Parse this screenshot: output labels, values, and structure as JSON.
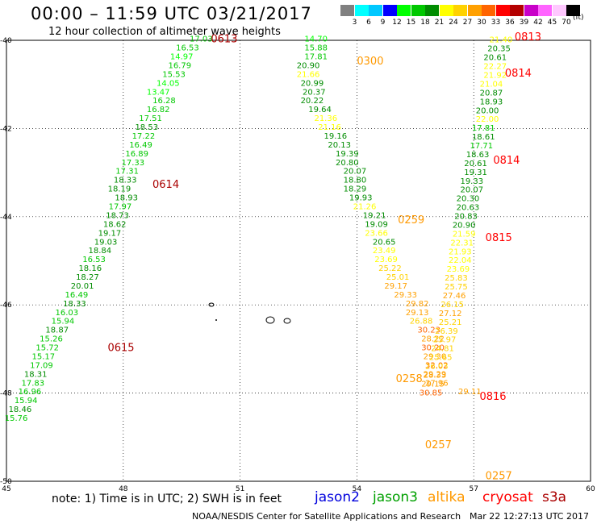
{
  "header": {
    "title": "00:00 – 11:59 UTC 03/21/2017",
    "subtitle": "12 hour collection of altimeter wave heights"
  },
  "color_scale": {
    "labels": [
      "3",
      "6",
      "9",
      "12",
      "15",
      "18",
      "21",
      "24",
      "27",
      "30",
      "33",
      "36",
      "39",
      "42",
      "45",
      "70"
    ],
    "unit": "(ft)",
    "colors": [
      "#808080",
      "#00ffff",
      "#00c8ff",
      "#0000ff",
      "#00ff00",
      "#00c800",
      "#008c00",
      "#ffff00",
      "#ffd200",
      "#ffa000",
      "#ff6400",
      "#ff0000",
      "#b40000",
      "#c800c8",
      "#ff64ff",
      "#ffc8ff",
      "#000000"
    ]
  },
  "note": "note: 1) Time is in UTC; 2) SWH is in feet",
  "legend": [
    {
      "name": "jason2",
      "color": "#0000dd"
    },
    {
      "name": "jason3",
      "color": "#00a000"
    },
    {
      "name": "altika",
      "color": "#ff9900"
    },
    {
      "name": "cryosat",
      "color": "#ff0000"
    },
    {
      "name": "s3a",
      "color": "#aa0000"
    }
  ],
  "footer": {
    "left": "NOAA/NESDIS Center for Satellite Applications and Research",
    "right": "Mar 22 12:27:13 UTC 2017"
  },
  "chart_data": {
    "type": "scatter",
    "xlim": [
      45,
      60
    ],
    "ylim": [
      -50,
      -40
    ],
    "xticks": [
      "45",
      "48",
      "51",
      "54",
      "57",
      "60"
    ],
    "yticks": [
      "-40",
      "-42",
      "-44",
      "-46",
      "-48",
      "-50"
    ],
    "grid": true,
    "time_labels": [
      {
        "text": "0613",
        "x": 50.25,
        "y": -40.05,
        "color": "#aa0000"
      },
      {
        "text": "0614",
        "x": 48.75,
        "y": -43.35,
        "color": "#aa0000"
      },
      {
        "text": "0615",
        "x": 47.6,
        "y": -47.05,
        "color": "#aa0000"
      },
      {
        "text": "0300",
        "x": 54.0,
        "y": -40.55,
        "color": "#ff9900"
      },
      {
        "text": "0259",
        "x": 55.05,
        "y": -44.15,
        "color": "#ff9900"
      },
      {
        "text": "0258",
        "x": 55.0,
        "y": -47.75,
        "color": "#ff9900"
      },
      {
        "text": "0257",
        "x": 55.75,
        "y": -49.25,
        "color": "#ff9900"
      },
      {
        "text": "0257",
        "x": 57.3,
        "y": -49.95,
        "color": "#ff9900"
      },
      {
        "text": "0813",
        "x": 58.05,
        "y": -40.0,
        "color": "#ff0000"
      },
      {
        "text": "0814",
        "x": 57.8,
        "y": -40.82,
        "color": "#ff0000"
      },
      {
        "text": "0814",
        "x": 57.5,
        "y": -42.8,
        "color": "#ff0000"
      },
      {
        "text": "0815",
        "x": 57.3,
        "y": -44.55,
        "color": "#ff0000"
      },
      {
        "text": "0816",
        "x": 57.15,
        "y": -48.15,
        "color": "#ff0000"
      }
    ],
    "series": [
      {
        "name": "s3a",
        "values": [
          [
            50.0,
            -40.03,
            "17.03"
          ],
          [
            49.65,
            -40.23,
            "16.53"
          ],
          [
            49.5,
            -40.43,
            "14.97"
          ],
          [
            49.45,
            -40.63,
            "16.79"
          ],
          [
            49.3,
            -40.83,
            "15.53"
          ],
          [
            49.15,
            -41.03,
            "14.05"
          ],
          [
            48.9,
            -41.23,
            "13.47"
          ],
          [
            49.05,
            -41.43,
            "16.28"
          ],
          [
            48.9,
            -41.63,
            "16.82"
          ],
          [
            48.7,
            -41.83,
            "17.51"
          ],
          [
            48.6,
            -42.03,
            "18.53"
          ],
          [
            48.52,
            -42.23,
            "17.22"
          ],
          [
            48.45,
            -42.43,
            "16.49"
          ],
          [
            48.35,
            -42.63,
            "16.89"
          ],
          [
            48.25,
            -42.83,
            "17.33"
          ],
          [
            48.1,
            -43.03,
            "17.31"
          ],
          [
            48.05,
            -43.23,
            "18.33"
          ],
          [
            47.9,
            -43.43,
            "18.19"
          ],
          [
            48.08,
            -43.63,
            "18.93"
          ],
          [
            47.92,
            -43.83,
            "17.97"
          ],
          [
            47.85,
            -44.03,
            "18.73"
          ],
          [
            47.78,
            -44.23,
            "18.62"
          ],
          [
            47.65,
            -44.43,
            "19.17"
          ],
          [
            47.55,
            -44.63,
            "19.03"
          ],
          [
            47.4,
            -44.83,
            "18.84"
          ],
          [
            47.25,
            -45.03,
            "16.53"
          ],
          [
            47.15,
            -45.23,
            "18.16"
          ],
          [
            47.08,
            -45.43,
            "18.27"
          ],
          [
            46.95,
            -45.63,
            "20.01"
          ],
          [
            46.8,
            -45.83,
            "16.49"
          ],
          [
            46.75,
            -46.03,
            "18.33"
          ],
          [
            46.55,
            -46.23,
            "16.03"
          ],
          [
            46.45,
            -46.43,
            "15.94"
          ],
          [
            46.3,
            -46.63,
            "18.87"
          ],
          [
            46.15,
            -46.83,
            "15.26"
          ],
          [
            46.05,
            -47.03,
            "15.72"
          ],
          [
            45.95,
            -47.23,
            "15.17"
          ],
          [
            45.9,
            -47.43,
            "17.09"
          ],
          [
            45.75,
            -47.63,
            "18.31"
          ],
          [
            45.68,
            -47.83,
            "17.83"
          ],
          [
            45.6,
            -48.03,
            "16.96"
          ],
          [
            45.5,
            -48.23,
            "15.94"
          ],
          [
            45.35,
            -48.43,
            "18.46"
          ],
          [
            45.25,
            -48.63,
            "15.76"
          ]
        ]
      },
      {
        "name": "altika",
        "values": [
          [
            52.95,
            -40.03,
            "14.70"
          ],
          [
            52.95,
            -40.23,
            "15.88"
          ],
          [
            52.95,
            -40.43,
            "17.81"
          ],
          [
            52.75,
            -40.63,
            "20.90"
          ],
          [
            52.75,
            -40.83,
            "21.66"
          ],
          [
            52.85,
            -41.03,
            "20.99"
          ],
          [
            52.9,
            -41.23,
            "20.37"
          ],
          [
            52.85,
            -41.43,
            "20.22"
          ],
          [
            53.05,
            -41.63,
            "19.64"
          ],
          [
            53.2,
            -41.83,
            "21.36"
          ],
          [
            53.3,
            -42.03,
            "21.16"
          ],
          [
            53.45,
            -42.23,
            "19.16"
          ],
          [
            53.55,
            -42.43,
            "20.13"
          ],
          [
            53.75,
            -42.63,
            "19.39"
          ],
          [
            53.75,
            -42.83,
            "20.80"
          ],
          [
            53.95,
            -43.03,
            "20.07"
          ],
          [
            53.95,
            -43.23,
            "18.80"
          ],
          [
            53.95,
            -43.43,
            "18.29"
          ],
          [
            54.1,
            -43.63,
            "19.93"
          ],
          [
            54.2,
            -43.83,
            "21.26"
          ],
          [
            54.45,
            -44.03,
            "19.21"
          ],
          [
            54.5,
            -44.23,
            "19.09"
          ],
          [
            54.5,
            -44.43,
            "23.66"
          ],
          [
            54.7,
            -44.63,
            "20.65"
          ],
          [
            54.7,
            -44.83,
            "23.49"
          ],
          [
            54.75,
            -45.03,
            "23.69"
          ],
          [
            54.85,
            -45.23,
            "25.22"
          ],
          [
            55.05,
            -45.43,
            "25.01"
          ],
          [
            55.0,
            -45.63,
            "29.17"
          ],
          [
            55.25,
            -45.83,
            "29.33"
          ],
          [
            55.55,
            -46.03,
            "29.82"
          ],
          [
            55.55,
            -46.23,
            "29.13"
          ],
          [
            55.65,
            -46.43,
            "26.88"
          ],
          [
            55.85,
            -46.63,
            "30.23"
          ],
          [
            55.95,
            -46.83,
            "28.22"
          ],
          [
            55.95,
            -47.03,
            "30.20"
          ],
          [
            56.0,
            -47.23,
            "29.30"
          ],
          [
            56.05,
            -47.43,
            "32.02"
          ],
          [
            56.0,
            -47.63,
            "29.29"
          ],
          [
            56.05,
            -47.83,
            "27.96"
          ],
          [
            56.9,
            -48.03,
            "29.11"
          ]
        ]
      },
      {
        "name": "cryosat",
        "values": [
          [
            57.7,
            -40.05,
            "21.40"
          ],
          [
            57.65,
            -40.25,
            "20.35"
          ],
          [
            57.55,
            -40.45,
            "20.61"
          ],
          [
            57.55,
            -40.65,
            "22.27"
          ],
          [
            57.55,
            -40.85,
            "21.92"
          ],
          [
            57.45,
            -41.05,
            "21.04"
          ],
          [
            57.45,
            -41.25,
            "20.87"
          ],
          [
            57.45,
            -41.45,
            "18.93"
          ],
          [
            57.35,
            -41.65,
            "20.00"
          ],
          [
            57.35,
            -41.85,
            "22.00"
          ],
          [
            57.25,
            -42.05,
            "17.81"
          ],
          [
            57.25,
            -42.25,
            "18.61"
          ],
          [
            57.2,
            -42.45,
            "17.71"
          ],
          [
            57.1,
            -42.65,
            "18.63"
          ],
          [
            57.05,
            -42.85,
            "20.61"
          ],
          [
            57.05,
            -43.05,
            "19.31"
          ],
          [
            56.95,
            -43.25,
            "19.33"
          ],
          [
            56.95,
            -43.45,
            "20.07"
          ],
          [
            56.85,
            -43.65,
            "20.30"
          ],
          [
            56.85,
            -43.85,
            "20.63"
          ],
          [
            56.8,
            -44.05,
            "20.83"
          ],
          [
            56.75,
            -44.25,
            "20.90"
          ],
          [
            56.75,
            -44.45,
            "21.59"
          ],
          [
            56.7,
            -44.65,
            "22.31"
          ],
          [
            56.65,
            -44.85,
            "21.93"
          ],
          [
            56.65,
            -45.05,
            "22.04"
          ],
          [
            56.6,
            -45.25,
            "23.69"
          ],
          [
            56.55,
            -45.45,
            "25.83"
          ],
          [
            56.55,
            -45.65,
            "25.75"
          ],
          [
            56.5,
            -45.85,
            "27.46"
          ],
          [
            56.45,
            -46.05,
            "26.15"
          ],
          [
            56.4,
            -46.25,
            "27.12"
          ],
          [
            56.4,
            -46.45,
            "25.21"
          ],
          [
            56.3,
            -46.65,
            "26.39"
          ],
          [
            56.25,
            -46.85,
            "25.97"
          ],
          [
            56.2,
            -47.05,
            "24.81"
          ],
          [
            56.15,
            -47.25,
            "25.65"
          ],
          [
            56.05,
            -47.45,
            "26.03"
          ],
          [
            56.0,
            -47.65,
            "28.33"
          ],
          [
            55.95,
            -47.85,
            "29.15"
          ],
          [
            55.9,
            -48.05,
            "30.85"
          ]
        ]
      }
    ]
  }
}
